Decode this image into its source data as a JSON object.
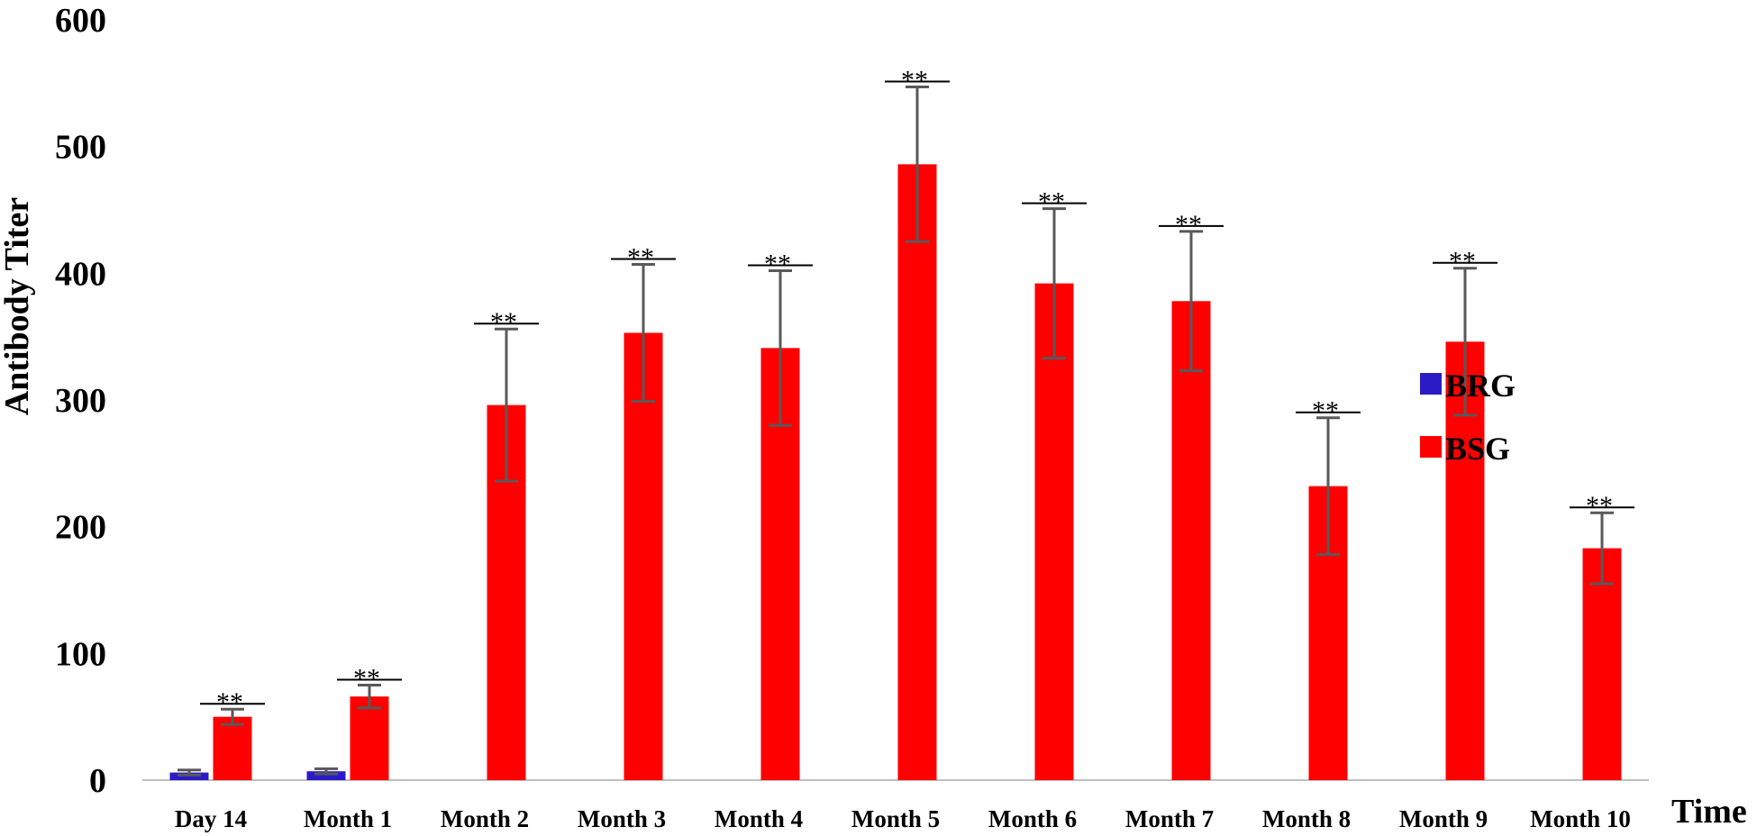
{
  "chart_data": {
    "type": "bar",
    "title": "",
    "xlabel": "Time",
    "ylabel": "Antibody Titer",
    "ylim": [
      0,
      600
    ],
    "yticks": [
      0,
      100,
      200,
      300,
      400,
      500,
      600
    ],
    "grid": false,
    "legend_position": "right",
    "categories": [
      "Day 14",
      "Month 1",
      "Month 2",
      "Month 3",
      "Month 4",
      "Month 5",
      "Month 6",
      "Month 7",
      "Month 8",
      "Month 9",
      "Month 10"
    ],
    "series": [
      {
        "name": "BRG",
        "color": "#2b1bc6",
        "values": [
          6,
          7,
          null,
          null,
          null,
          null,
          null,
          null,
          null,
          null,
          null
        ],
        "error": [
          2,
          2,
          null,
          null,
          null,
          null,
          null,
          null,
          null,
          null,
          null
        ]
      },
      {
        "name": "BSG",
        "color": "#ff0000",
        "values": [
          50,
          66,
          296,
          353,
          341,
          486,
          392,
          378,
          232,
          346,
          183
        ],
        "error": [
          6,
          9,
          60,
          54,
          61,
          61,
          59,
          55,
          54,
          58,
          28
        ]
      }
    ],
    "annotations": [
      "**",
      "**",
      "**",
      "**",
      "**",
      "**",
      "**",
      "**",
      "**",
      "**",
      "**"
    ]
  }
}
